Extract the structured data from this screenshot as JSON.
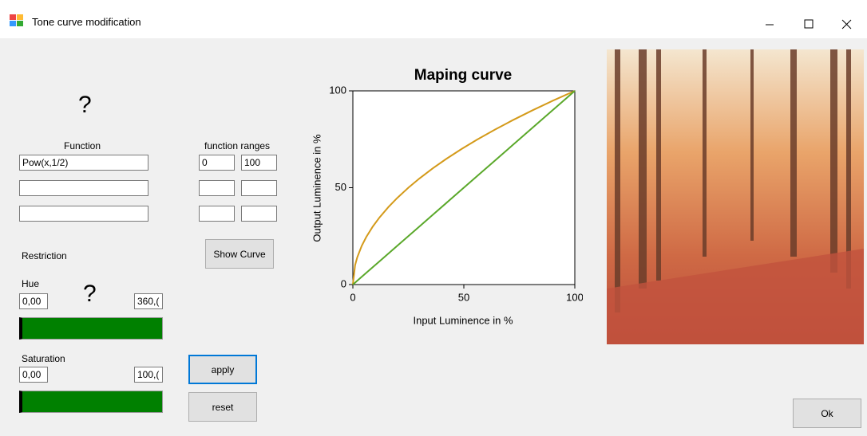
{
  "window": {
    "title": "Tone curve modification"
  },
  "labels": {
    "function": "Function",
    "function_ranges": "function ranges",
    "restriction": "Restriction",
    "hue": "Hue",
    "saturation": "Saturation",
    "question_marks": [
      "?",
      "?"
    ]
  },
  "inputs": {
    "functions": [
      "Pow(x,1/2)"
    ],
    "ranges": [
      [
        "0",
        "100"
      ]
    ],
    "hue": [
      "0,00",
      "360,("
    ],
    "saturation": [
      "0,00",
      "100,("
    ]
  },
  "buttons": {
    "show_curve": "Show Curve",
    "apply": "apply",
    "reset": "reset",
    "ok": "Ok"
  },
  "chart_data": {
    "type": "line",
    "title": "Maping curve",
    "x_label": "Input Luminence in %",
    "y_label": "Output Luminence in %",
    "x": [
      0,
      1,
      2,
      4,
      6,
      9,
      12,
      16,
      20,
      25,
      30,
      36,
      42,
      49,
      56,
      64,
      72,
      81,
      90,
      100
    ],
    "series": [
      {
        "color": "#d49a1a",
        "values": [
          0,
          10,
          14.14,
          20,
          24.49,
          30,
          34.64,
          40,
          44.72,
          50,
          54.77,
          60,
          64.81,
          70,
          74.83,
          80,
          84.85,
          90,
          94.87,
          100
        ]
      },
      {
        "color": "#5aa82a",
        "values": [
          0,
          1,
          2,
          4,
          6,
          9,
          12,
          16,
          20,
          25,
          30,
          36,
          42,
          49,
          56,
          64,
          72,
          81,
          90,
          100
        ]
      }
    ],
    "xlim": [
      0,
      100
    ],
    "ylim": [
      0,
      100
    ],
    "xticks": [
      0,
      50,
      100
    ],
    "yticks": [
      0,
      50,
      100
    ]
  }
}
